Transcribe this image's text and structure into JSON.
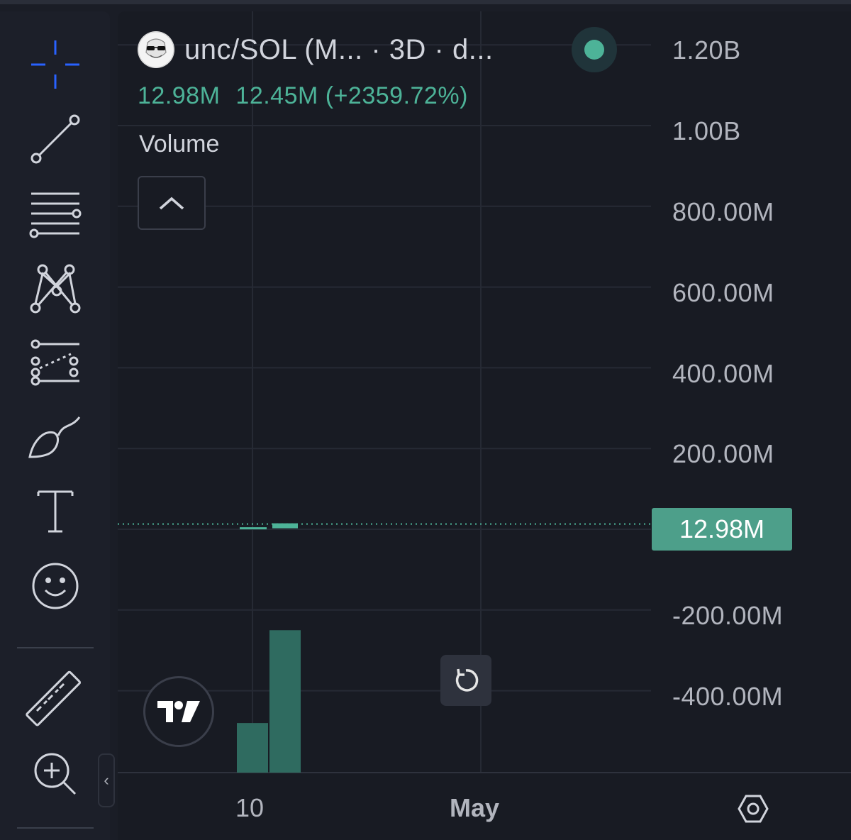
{
  "chart_header": {
    "symbol_title": "unc/SOL (M... · 3D · d...",
    "last_value": "12.98M",
    "change": "12.45M (+2359.72%)",
    "indicator_name": "Volume",
    "status_color": "#4db398"
  },
  "price_axis": {
    "labels": [
      "1.20B",
      "1.00B",
      "800.00M",
      "600.00M",
      "400.00M",
      "200.00M",
      "-200.00M",
      "-400.00M"
    ],
    "current_badge": "12.98M"
  },
  "time_axis": {
    "labels": [
      "10",
      "May"
    ]
  },
  "toolbar": {
    "icons": [
      "crosshair-icon",
      "trend-line-icon",
      "fib-retracement-icon",
      "pattern-icon",
      "forecast-icon",
      "brush-icon",
      "text-icon",
      "emoji-icon",
      "ruler-icon",
      "zoom-in-icon"
    ]
  },
  "colors": {
    "accent": "#4db398",
    "badge": "#4d9f8a",
    "volume_bar": "#2f6b60",
    "crosshair": "#2962ff",
    "background": "#181b23"
  },
  "chart_data": {
    "type": "bar",
    "title": "unc/SOL (M... · 3D · d...",
    "series": [
      {
        "name": "Volume",
        "values": [
          -480000000,
          -250000000
        ]
      }
    ],
    "current_value": 12980000,
    "ylim": [
      -480000000,
      1250000000
    ],
    "y_ticks": [
      1200000000,
      1000000000,
      800000000,
      600000000,
      400000000,
      200000000,
      0,
      -200000000,
      -400000000
    ],
    "x_tick_labels": [
      "10",
      "May"
    ],
    "grid": true
  }
}
